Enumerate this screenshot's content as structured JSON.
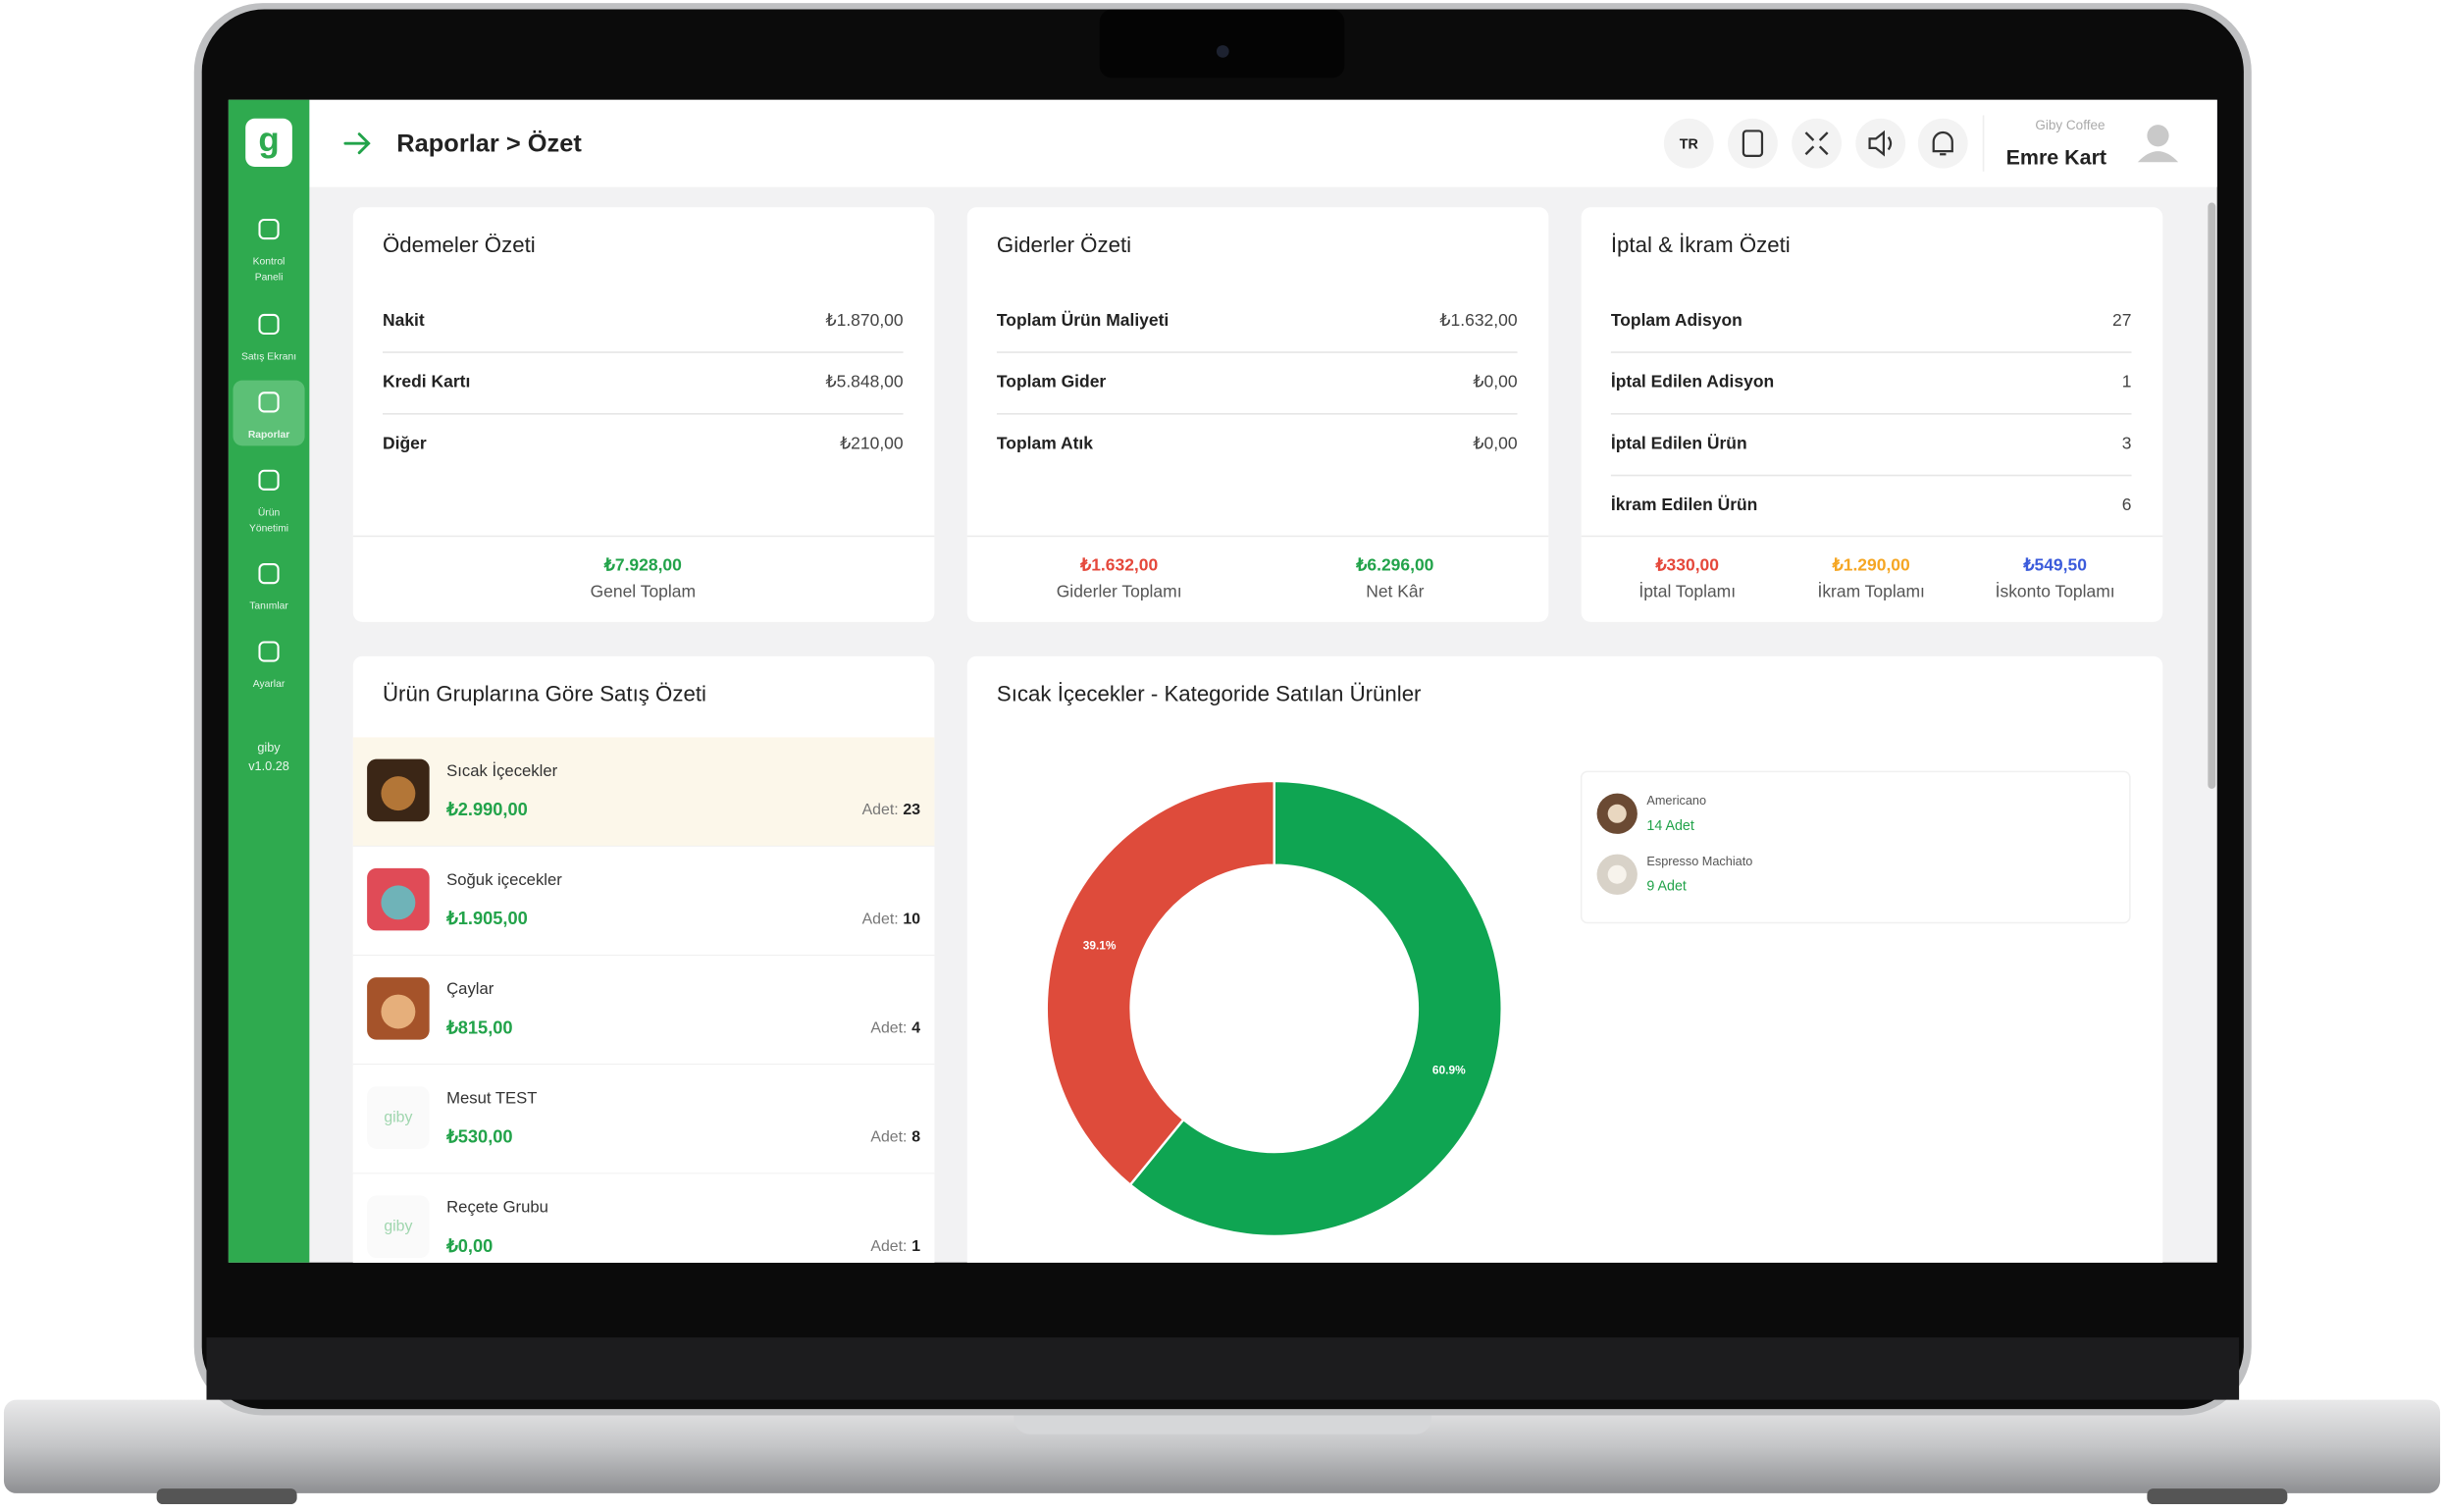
{
  "header": {
    "breadcrumb": "Raporlar > Özet",
    "lang": "TR",
    "company": "Giby Coffee",
    "user": "Emre Kart"
  },
  "sidebar": {
    "items": [
      {
        "label": [
          "Kontrol",
          "Paneli"
        ]
      },
      {
        "label": [
          "Satış Ekranı"
        ]
      },
      {
        "label": [
          "Raporlar"
        ]
      },
      {
        "label": [
          "Ürün",
          "Yönetimi"
        ]
      },
      {
        "label": [
          "Tanımlar"
        ]
      },
      {
        "label": [
          "Ayarlar"
        ]
      }
    ],
    "active": 2,
    "version": [
      "giby",
      "v1.0.28"
    ]
  },
  "summary_cards": [
    {
      "title": "Ödemeler Özeti",
      "rows": [
        {
          "label": "Nakit",
          "value": "₺1.870,00"
        },
        {
          "label": "Kredi Kartı",
          "value": "₺5.848,00"
        },
        {
          "label": "Diğer",
          "value": "₺210,00"
        }
      ],
      "totals": [
        {
          "value": "₺7.928,00",
          "label": "Genel Toplam",
          "color": "#22a34a"
        }
      ]
    },
    {
      "title": "Giderler Özeti",
      "rows": [
        {
          "label": "Toplam Ürün Maliyeti",
          "value": "₺1.632,00"
        },
        {
          "label": "Toplam Gider",
          "value": "₺0,00"
        },
        {
          "label": "Toplam Atık",
          "value": "₺0,00"
        }
      ],
      "totals": [
        {
          "value": "₺1.632,00",
          "label": "Giderler Toplamı",
          "color": "#e5483b"
        },
        {
          "value": "₺6.296,00",
          "label": "Net Kâr",
          "color": "#22a34a"
        }
      ]
    },
    {
      "title": "İptal & İkram Özeti",
      "rows": [
        {
          "label": "Toplam Adisyon",
          "value": 27
        },
        {
          "label": "İptal Edilen Adisyon",
          "value": 1
        },
        {
          "label": "İptal Edilen Ürün",
          "value": 3
        },
        {
          "label": "İkram Edilen Ürün",
          "value": 6
        }
      ],
      "totals": [
        {
          "value": "₺330,00",
          "label": "İptal Toplamı",
          "color": "#e5483b"
        },
        {
          "value": "₺1.290,00",
          "label": "İkram Toplamı",
          "color": "#f5a623"
        },
        {
          "value": "₺549,50",
          "label": "İskonto Toplamı",
          "color": "#3b5bdb"
        }
      ]
    }
  ],
  "product_groups": {
    "title": "Ürün Gruplarına Göre Satış Özeti",
    "count_label": "Adet:",
    "placeholder_logo": "giby",
    "items": [
      {
        "name": "Sıcak İçecekler",
        "amount": "₺2.990,00",
        "count": 23
      },
      {
        "name": "Soğuk içecekler",
        "amount": "₺1.905,00",
        "count": 10
      },
      {
        "name": "Çaylar",
        "amount": "₺815,00",
        "count": 4
      },
      {
        "name": "Mesut TEST",
        "amount": "₺530,00",
        "count": 8
      },
      {
        "name": "Reçete Grubu",
        "amount": "₺0,00",
        "count": 1
      }
    ]
  },
  "category_chart": {
    "type": "pie",
    "title": "Sıcak İçecekler - Kategoride Satılan Ürünler",
    "values": [
      60.9,
      39.1
    ],
    "value_labels": [
      "60.9%",
      "39.1%"
    ],
    "colors": [
      "#0fa552",
      "#de4b3b"
    ],
    "legend": [
      {
        "name": "Americano",
        "count_label": "14 Adet"
      },
      {
        "name": "Espresso Machiato",
        "count_label": "9 Adet"
      }
    ]
  }
}
